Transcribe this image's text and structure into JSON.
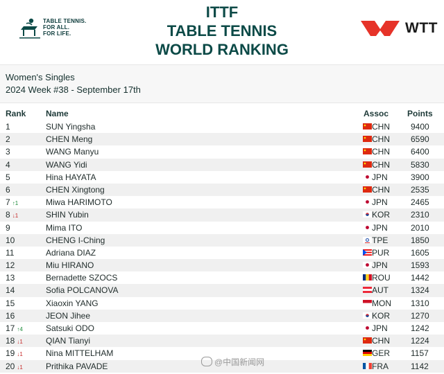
{
  "header": {
    "ittf_tagline": [
      "TABLE TENNIS.",
      "FOR ALL.",
      "FOR LIFE."
    ],
    "title_lines": [
      "ITTF",
      "TABLE TENNIS",
      "WORLD RANKING"
    ],
    "wtt_text": "WTT"
  },
  "subheader": {
    "category": "Women's Singles",
    "week": "2024 Week #38 - September 17th"
  },
  "columns": {
    "rank": "Rank",
    "name": "Name",
    "assoc": "Assoc",
    "points": "Points"
  },
  "rows": [
    {
      "rank": "1",
      "trend": "",
      "name": "SUN Yingsha",
      "assoc": "CHN",
      "points": "9400",
      "flag": "chn"
    },
    {
      "rank": "2",
      "trend": "",
      "name": "CHEN Meng",
      "assoc": "CHN",
      "points": "6590",
      "flag": "chn"
    },
    {
      "rank": "3",
      "trend": "",
      "name": "WANG Manyu",
      "assoc": "CHN",
      "points": "6400",
      "flag": "chn"
    },
    {
      "rank": "4",
      "trend": "",
      "name": "WANG Yidi",
      "assoc": "CHN",
      "points": "5830",
      "flag": "chn"
    },
    {
      "rank": "5",
      "trend": "",
      "name": "Hina HAYATA",
      "assoc": "JPN",
      "points": "3900",
      "flag": "jpn"
    },
    {
      "rank": "6",
      "trend": "",
      "name": "CHEN Xingtong",
      "assoc": "CHN",
      "points": "2535",
      "flag": "chn"
    },
    {
      "rank": "7",
      "trend": "↑1",
      "name": "Miwa HARIMOTO",
      "assoc": "JPN",
      "points": "2465",
      "flag": "jpn"
    },
    {
      "rank": "8",
      "trend": "↓1",
      "name": "SHIN Yubin",
      "assoc": "KOR",
      "points": "2310",
      "flag": "kor"
    },
    {
      "rank": "9",
      "trend": "",
      "name": "Mima ITO",
      "assoc": "JPN",
      "points": "2010",
      "flag": "jpn"
    },
    {
      "rank": "10",
      "trend": "",
      "name": "CHENG I-Ching",
      "assoc": "TPE",
      "points": "1850",
      "flag": "tpe"
    },
    {
      "rank": "11",
      "trend": "",
      "name": "Adriana DIAZ",
      "assoc": "PUR",
      "points": "1605",
      "flag": "pur"
    },
    {
      "rank": "12",
      "trend": "",
      "name": "Miu HIRANO",
      "assoc": "JPN",
      "points": "1593",
      "flag": "jpn"
    },
    {
      "rank": "13",
      "trend": "",
      "name": "Bernadette SZOCS",
      "assoc": "ROU",
      "points": "1442",
      "flag": "rou"
    },
    {
      "rank": "14",
      "trend": "",
      "name": "Sofia POLCANOVA",
      "assoc": "AUT",
      "points": "1324",
      "flag": "aut"
    },
    {
      "rank": "15",
      "trend": "",
      "name": "Xiaoxin YANG",
      "assoc": "MON",
      "points": "1310",
      "flag": "mon"
    },
    {
      "rank": "16",
      "trend": "",
      "name": "JEON Jihee",
      "assoc": "KOR",
      "points": "1270",
      "flag": "kor"
    },
    {
      "rank": "17",
      "trend": "↑4",
      "name": "Satsuki ODO",
      "assoc": "JPN",
      "points": "1242",
      "flag": "jpn"
    },
    {
      "rank": "18",
      "trend": "↓1",
      "name": "QIAN Tianyi",
      "assoc": "CHN",
      "points": "1224",
      "flag": "chn"
    },
    {
      "rank": "19",
      "trend": "↓1",
      "name": "Nina MITTELHAM",
      "assoc": "GER",
      "points": "1157",
      "flag": "ger"
    },
    {
      "rank": "20",
      "trend": "↓1",
      "name": "Prithika PAVADE",
      "assoc": "FRA",
      "points": "1142",
      "flag": "fra"
    }
  ],
  "watermark": "@中国新闻网",
  "colors": {
    "title": "#0c4a47",
    "wtt_red": "#e63329",
    "up": "#1c8c3a",
    "down": "#c62828"
  }
}
